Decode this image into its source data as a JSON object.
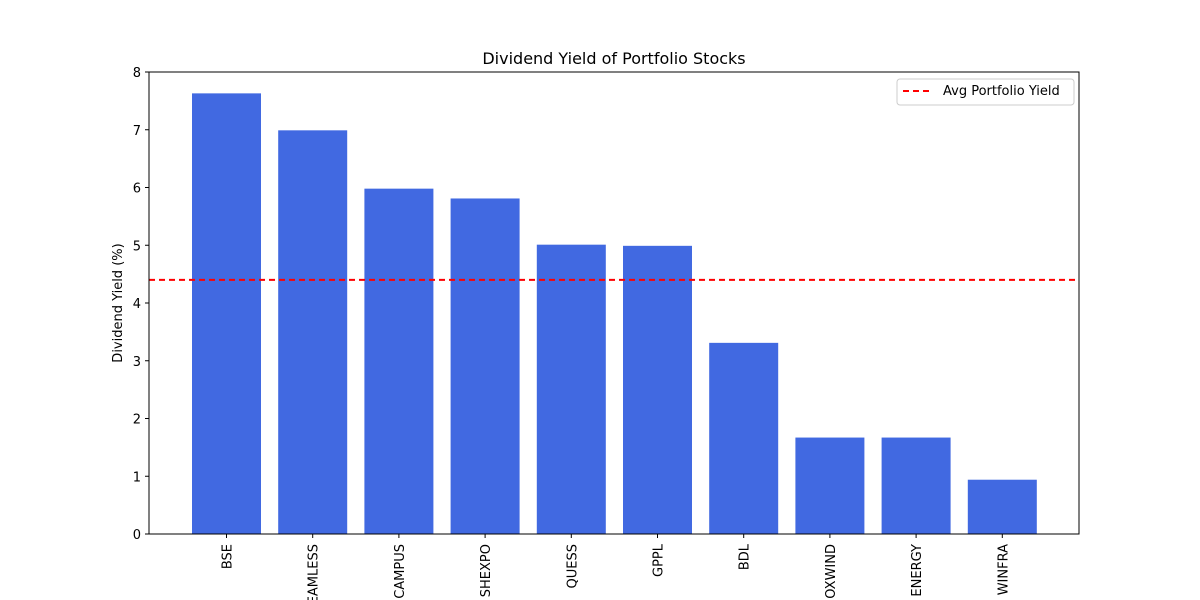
{
  "chart_data": {
    "type": "bar",
    "title": "Dividend Yield of Portfolio Stocks",
    "xlabel": "",
    "ylabel": "Dividend Yield (%)",
    "categories": [
      "BSE",
      "SEAMLESS",
      "CAMPUS",
      "SHEXPO",
      "QUESS",
      "GPPL",
      "BDL",
      "INOXWIND",
      "ENERGY",
      "WINFRA"
    ],
    "values": [
      7.63,
      6.99,
      5.98,
      5.81,
      5.01,
      4.99,
      3.31,
      1.67,
      1.67,
      0.94
    ],
    "ylim": [
      0,
      8
    ],
    "yticks": [
      0,
      1,
      2,
      3,
      4,
      5,
      6,
      7,
      8
    ],
    "reference_line": {
      "label": "Avg Portfolio Yield",
      "value": 4.4,
      "style": "dashed",
      "color": "#ff0000"
    },
    "bar_color": "#4169e1",
    "legend": {
      "position": "top-right",
      "entries": [
        "Avg Portfolio Yield"
      ]
    },
    "grid": false
  }
}
